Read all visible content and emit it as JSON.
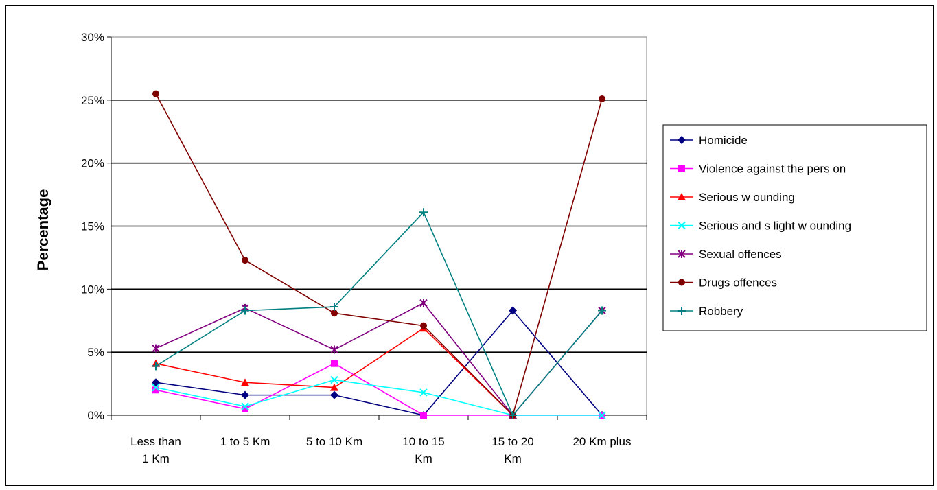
{
  "chart_data": {
    "type": "line",
    "title": "",
    "xlabel": "",
    "ylabel": "Percentage",
    "ylim": [
      0,
      30
    ],
    "yticks": [
      "0%",
      "5%",
      "10%",
      "15%",
      "20%",
      "25%",
      "30%"
    ],
    "grid": true,
    "legend_position": "right",
    "categories": [
      [
        "Less than",
        "1 Km"
      ],
      [
        "1 to 5 Km"
      ],
      [
        "5 to 10 Km"
      ],
      [
        "10 to 15",
        "Km"
      ],
      [
        "15 to 20",
        "Km"
      ],
      [
        "20 Km plus"
      ]
    ],
    "series": [
      {
        "name": "Homicide",
        "color": "#000080",
        "marker": "diamond",
        "values": [
          2.6,
          1.6,
          1.6,
          0,
          8.3,
          0
        ]
      },
      {
        "name": "Violence against the pers on",
        "color": "#ff00ff",
        "marker": "square",
        "values": [
          2.0,
          0.5,
          4.1,
          0,
          0,
          0
        ]
      },
      {
        "name": "Serious w ounding",
        "color": "#ff0000",
        "marker": "triangle",
        "values": [
          4.1,
          2.6,
          2.2,
          6.9,
          0,
          null
        ]
      },
      {
        "name": "Serious and s light w ounding",
        "color": "#00ffff",
        "marker": "x",
        "values": [
          2.2,
          0.7,
          2.8,
          1.8,
          0,
          0
        ]
      },
      {
        "name": "Sexual offences",
        "color": "#800080",
        "marker": "star",
        "values": [
          5.3,
          8.5,
          5.2,
          8.9,
          0,
          8.3
        ]
      },
      {
        "name": "Drugs offences",
        "color": "#800000",
        "marker": "circle",
        "values": [
          25.5,
          12.3,
          8.1,
          7.1,
          0,
          25.1
        ]
      },
      {
        "name": "Robbery",
        "color": "#008080",
        "marker": "plus",
        "values": [
          3.9,
          8.3,
          8.6,
          16.1,
          0,
          8.3
        ]
      }
    ]
  }
}
